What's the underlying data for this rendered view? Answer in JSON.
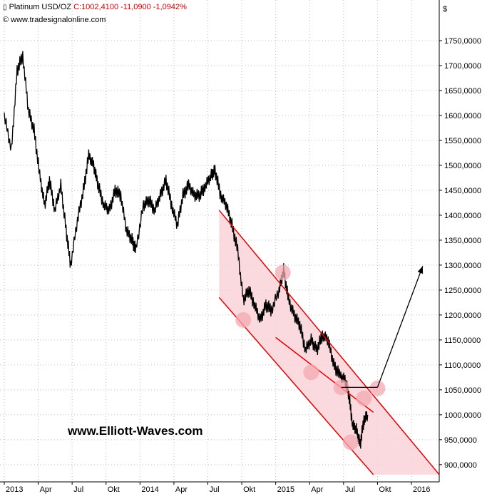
{
  "header": {
    "instrument_icon": "candlestick-icon",
    "instrument": "Platinum USD/OZ",
    "close": "C:1002,4100",
    "change": "-11,0900",
    "change_pct": "-1,0942%",
    "copyright": "© www.tradesignalonline.com",
    "currency": "$"
  },
  "watermark": "www.Elliott-Waves.com",
  "colors": {
    "price": "#000000",
    "channel": "#e60000",
    "channel_fill": "#f9d4d8",
    "marker": "#f3a8b2",
    "grid": "#bdbdbd",
    "header_change": "#d00000"
  },
  "chart_data": {
    "type": "line",
    "title": "Platinum USD/OZ",
    "xlabel": "",
    "ylabel": "$",
    "ylim": [
      870,
      1775
    ],
    "grid": true,
    "y_ticks": [
      "1750,0000",
      "1700,0000",
      "1650,0000",
      "1600,0000",
      "1550,0000",
      "1500,0000",
      "1450,0000",
      "1400,0000",
      "1350,0000",
      "1300,0000",
      "1250,0000",
      "1200,0000",
      "1150,0000",
      "1100,0000",
      "1050,0000",
      "1000,0000",
      "950,0000",
      "900,0000"
    ],
    "y_tick_values": [
      1750,
      1700,
      1650,
      1600,
      1550,
      1500,
      1450,
      1400,
      1350,
      1300,
      1250,
      1200,
      1150,
      1100,
      1050,
      1000,
      950,
      900
    ],
    "x_ticks": [
      "2013",
      "Apr",
      "Jul",
      "Okt",
      "2014",
      "Apr",
      "Jul",
      "Okt",
      "2015",
      "Apr",
      "Jul",
      "Okt",
      "2016"
    ],
    "x_tick_dates": [
      "2013-01",
      "2013-04",
      "2013-07",
      "2013-10",
      "2014-01",
      "2014-04",
      "2014-07",
      "2014-10",
      "2015-01",
      "2015-04",
      "2015-07",
      "2015-10",
      "2016-01"
    ],
    "xlim": [
      "2013-01",
      "2016-04"
    ],
    "series": [
      {
        "x": [
          "2013-01",
          "2013-01-20",
          "2013-02-05",
          "2013-02-20",
          "2013-03-05",
          "2013-03-20",
          "2013-04-05",
          "2013-04-18",
          "2013-05-01",
          "2013-05-15",
          "2013-06-01",
          "2013-06-15",
          "2013-06-27",
          "2013-07-15",
          "2013-08-01",
          "2013-08-15",
          "2013-08-28",
          "2013-09-10",
          "2013-09-25",
          "2013-10-10",
          "2013-10-25",
          "2013-11-10",
          "2013-11-25",
          "2013-12-10",
          "2013-12-20",
          "2014-01-10",
          "2014-01-25",
          "2014-02-10",
          "2014-02-25",
          "2014-03-10",
          "2014-03-25",
          "2014-04-10",
          "2014-04-25",
          "2014-05-10",
          "2014-05-25",
          "2014-06-10",
          "2014-06-25",
          "2014-07-10",
          "2014-07-20",
          "2014-08-05",
          "2014-08-20",
          "2014-09-05",
          "2014-09-20",
          "2014-10-05",
          "2014-10-20",
          "2014-11-05",
          "2014-11-20",
          "2014-12-05",
          "2014-12-20",
          "2015-01-10",
          "2015-01-22",
          "2015-02-05",
          "2015-02-20",
          "2015-03-05",
          "2015-03-20",
          "2015-04-05",
          "2015-04-20",
          "2015-05-05",
          "2015-05-20",
          "2015-06-05",
          "2015-06-20",
          "2015-07-05",
          "2015-07-15",
          "2015-07-25",
          "2015-08-05",
          "2015-08-15",
          "2015-08-25",
          "2015-09-05"
        ],
        "values": [
          1600,
          1530,
          1690,
          1720,
          1610,
          1570,
          1480,
          1420,
          1470,
          1410,
          1460,
          1370,
          1300,
          1390,
          1450,
          1520,
          1500,
          1460,
          1420,
          1410,
          1450,
          1440,
          1370,
          1350,
          1330,
          1420,
          1430,
          1410,
          1440,
          1470,
          1420,
          1380,
          1440,
          1460,
          1440,
          1440,
          1460,
          1480,
          1490,
          1440,
          1420,
          1380,
          1330,
          1230,
          1250,
          1220,
          1190,
          1220,
          1210,
          1250,
          1290,
          1230,
          1200,
          1180,
          1130,
          1150,
          1130,
          1160,
          1150,
          1100,
          1080,
          1070,
          1040,
          980,
          970,
          940,
          990,
          1000
        ]
      }
    ],
    "channel": {
      "upper": {
        "x": [
          "2014-08-01",
          "2016-03-15"
        ],
        "y": [
          1410,
          880
        ]
      },
      "lower": {
        "x": [
          "2014-08-01",
          "2015-09-20"
        ],
        "y": [
          1235,
          880
        ]
      },
      "mid": {
        "x": [
          "2015-01-01",
          "2015-09-20"
        ],
        "y": [
          1155,
          1005
        ]
      }
    },
    "annotations": {
      "touch_points": [
        {
          "x": "2014-10-05",
          "y": 1190
        },
        {
          "x": "2015-01-20",
          "y": 1285
        },
        {
          "x": "2015-04-05",
          "y": 1085
        },
        {
          "x": "2015-06-25",
          "y": 1055
        },
        {
          "x": "2015-07-20",
          "y": 945
        },
        {
          "x": "2015-08-25",
          "y": 1033
        },
        {
          "x": "2015-10-01",
          "y": 1053
        }
      ],
      "breakout_line": {
        "x": [
          "2015-06-25",
          "2015-10-01"
        ],
        "y": [
          1055,
          1055
        ]
      },
      "projection_arrow": {
        "x": [
          "2015-10-01",
          "2016-02-01"
        ],
        "y": [
          1055,
          1298
        ]
      }
    }
  }
}
